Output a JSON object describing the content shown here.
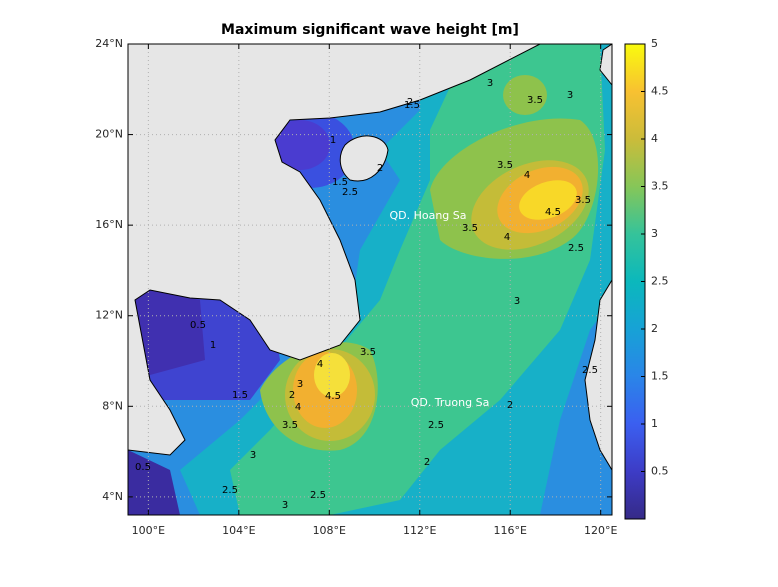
{
  "title": "Maximum significant wave height [m]",
  "axes": {
    "xlim": [
      99.1,
      120.5
    ],
    "ylim": [
      3.2,
      24
    ],
    "grid": true,
    "xticks": [
      {
        "value": 100,
        "label": "100°E"
      },
      {
        "value": 104,
        "label": "104°E"
      },
      {
        "value": 108,
        "label": "108°E"
      },
      {
        "value": 112,
        "label": "112°E"
      },
      {
        "value": 116,
        "label": "116°E"
      },
      {
        "value": 120,
        "label": "120°E"
      }
    ],
    "yticks": [
      {
        "value": 4,
        "label": "4°N"
      },
      {
        "value": 8,
        "label": "8°N"
      },
      {
        "value": 12,
        "label": "12°N"
      },
      {
        "value": 16,
        "label": "16°N"
      },
      {
        "value": 20,
        "label": "20°N"
      },
      {
        "value": 24,
        "label": "24°N"
      }
    ]
  },
  "colorbar": {
    "clim": [
      0,
      5
    ],
    "ticks": [
      0.5,
      1,
      1.5,
      2,
      2.5,
      3,
      3.5,
      4,
      4.5,
      5
    ],
    "colormap": "parula"
  },
  "annotations": [
    "QD. Hoang Sa",
    "QD. Truong Sa"
  ],
  "contour_labels": [
    1,
    1.5,
    2,
    2.5,
    2,
    1.5,
    3,
    3.5,
    3,
    3.5,
    4,
    4.5,
    4,
    3.5,
    3.5,
    2.5,
    3,
    2.5,
    2,
    0.5,
    1,
    1.5,
    2,
    3,
    4,
    4.5,
    4,
    3.5,
    3.5,
    3,
    2.5,
    2.5,
    3,
    2,
    2.5,
    0.5
  ]
}
